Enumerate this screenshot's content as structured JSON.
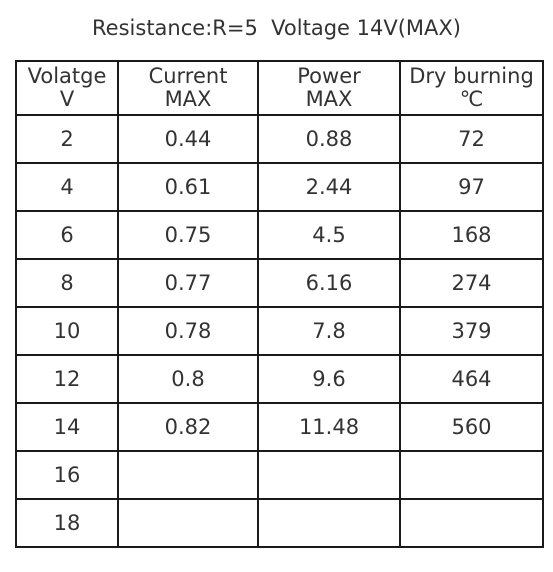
{
  "title": "Resistance:R=5  Voltage 14V(MAX)",
  "table": {
    "headers": [
      [
        "Volatge",
        "V"
      ],
      [
        "Current",
        "MAX"
      ],
      [
        "Power",
        "MAX"
      ],
      [
        "Dry burning",
        "℃"
      ]
    ],
    "rows": [
      [
        "2",
        "0.44",
        "0.88",
        "72"
      ],
      [
        "4",
        "0.61",
        "2.44",
        "97"
      ],
      [
        "6",
        "0.75",
        "4.5",
        "168"
      ],
      [
        "8",
        "0.77",
        "6.16",
        "274"
      ],
      [
        "10",
        "0.78",
        "7.8",
        "379"
      ],
      [
        "12",
        "0.8",
        "9.6",
        "464"
      ],
      [
        "14",
        "0.82",
        "11.48",
        "560"
      ],
      [
        "16",
        "",
        "",
        ""
      ],
      [
        "18",
        "",
        "",
        ""
      ]
    ]
  }
}
